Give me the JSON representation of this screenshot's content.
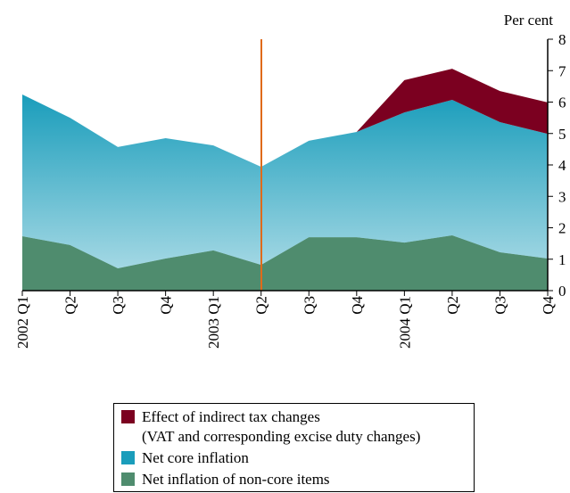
{
  "chart_data": {
    "type": "stacked_area",
    "y_label": "Per cent",
    "categories": [
      "2002 Q1",
      "Q2",
      "Q3",
      "Q4",
      "2003 Q1",
      "Q2",
      "Q3",
      "Q4",
      "2004 Q1",
      "Q2",
      "Q3",
      "Q4"
    ],
    "series": [
      {
        "name": "Net inflation of non-core items",
        "color": "#4f8c6e",
        "values": [
          1.73,
          1.45,
          0.71,
          1.02,
          1.28,
          0.82,
          1.7,
          1.7,
          1.53,
          1.76,
          1.22,
          1.02
        ]
      },
      {
        "name": "Net core inflation",
        "color": "#1a9dbb",
        "values": [
          4.51,
          4.05,
          3.86,
          3.83,
          3.34,
          3.12,
          3.07,
          3.35,
          4.14,
          4.31,
          4.14,
          3.97
        ]
      },
      {
        "name": "Effect of indirect tax changes\n(VAT and corresponding excise duty changes)",
        "color": "#7b0020",
        "values": [
          null,
          null,
          null,
          null,
          null,
          null,
          null,
          0,
          1.03,
          0.99,
          0.99,
          1.0
        ]
      }
    ],
    "ylim": [
      0,
      8
    ],
    "yticks": [
      0,
      1,
      2,
      3,
      4,
      5,
      6,
      7,
      8
    ]
  }
}
